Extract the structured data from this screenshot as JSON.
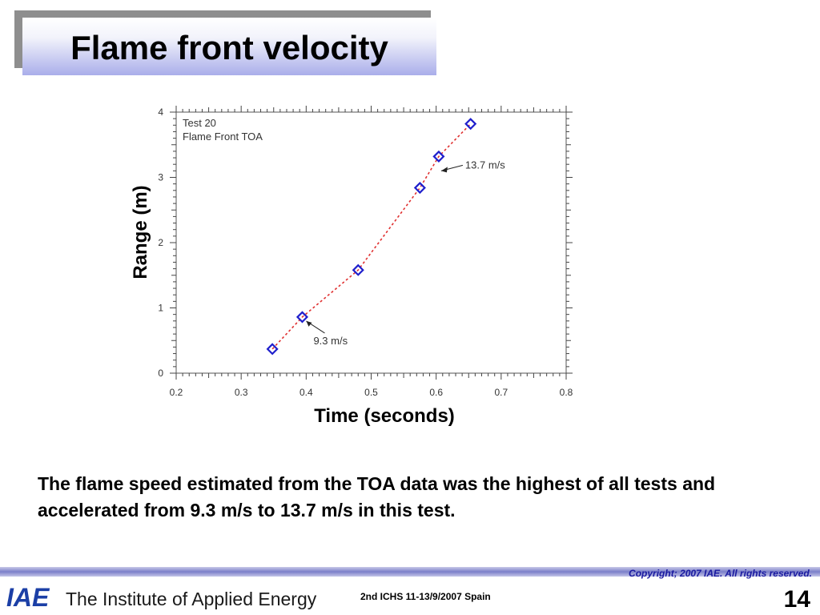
{
  "slide": {
    "title": "Flame front velocity",
    "body": "The flame speed estimated from the TOA data was the highest of all tests and accelerated from 9.3 m/s to 13.7 m/s in this test.",
    "copyright": "Copyright; 2007 IAE. All rights reserved.",
    "institute": "The Institute of Applied Energy",
    "logo_text": "IAE",
    "conference": "2nd  ICHS 11-13/9/2007 Spain",
    "page_number": "14"
  },
  "chart_data": {
    "type": "scatter",
    "legend_lines": [
      "Test 20",
      "Flame Front TOA"
    ],
    "xlabel": "Time (seconds)",
    "ylabel": "Range (m)",
    "xlim": [
      0.2,
      0.8
    ],
    "ylim": [
      0,
      4
    ],
    "xticks": [
      "0.2",
      "0.3",
      "0.4",
      "0.5",
      "0.6",
      "0.7",
      "0.8"
    ],
    "yticks": [
      "0",
      "1",
      "2",
      "3",
      "4"
    ],
    "series": [
      {
        "x": [
          0.348,
          0.394,
          0.48,
          0.575,
          0.604,
          0.653
        ],
        "y": [
          0.37,
          0.86,
          1.58,
          2.84,
          3.32,
          3.82
        ]
      }
    ],
    "annotations": [
      {
        "text": "9.3 m/s",
        "point_x": 0.394,
        "point_y": 0.86
      },
      {
        "text": "13.7 m/s",
        "point_x": 0.604,
        "point_y": 3.1
      }
    ],
    "colors": {
      "marker": "#1f1fcc",
      "fit_line": "#e03030",
      "frame": "#555555"
    }
  }
}
